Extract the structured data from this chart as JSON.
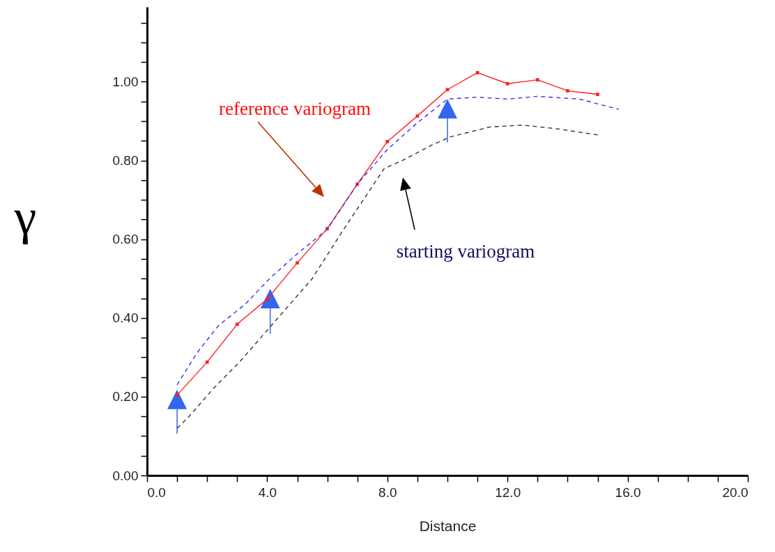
{
  "chart_data": {
    "type": "line",
    "xlabel": "Distance",
    "ylabel": "γ",
    "xlim": [
      0,
      20
    ],
    "ylim": [
      0,
      1.19
    ],
    "xticks": [
      {
        "value": 0,
        "label": "0.0"
      },
      {
        "value": 1,
        "label": null
      },
      {
        "value": 2,
        "label": null
      },
      {
        "value": 3,
        "label": null
      },
      {
        "value": 4,
        "label": "4.0"
      },
      {
        "value": 5,
        "label": null
      },
      {
        "value": 6,
        "label": null
      },
      {
        "value": 7,
        "label": null
      },
      {
        "value": 8,
        "label": "8.0"
      },
      {
        "value": 9,
        "label": null
      },
      {
        "value": 10,
        "label": null
      },
      {
        "value": 11,
        "label": null
      },
      {
        "value": 12,
        "label": "12.0"
      },
      {
        "value": 13,
        "label": null
      },
      {
        "value": 14,
        "label": null
      },
      {
        "value": 15,
        "label": null
      },
      {
        "value": 16,
        "label": "16.0"
      },
      {
        "value": 17,
        "label": null
      },
      {
        "value": 18,
        "label": null
      },
      {
        "value": 19,
        "label": null
      },
      {
        "value": 20,
        "label": "20.0"
      }
    ],
    "yticks": [
      {
        "value": 0,
        "label": "0.00"
      },
      {
        "value": 0.05,
        "label": null
      },
      {
        "value": 0.1,
        "label": null
      },
      {
        "value": 0.15,
        "label": null
      },
      {
        "value": 0.2,
        "label": "0.20"
      },
      {
        "value": 0.25,
        "label": null
      },
      {
        "value": 0.3,
        "label": null
      },
      {
        "value": 0.35,
        "label": null
      },
      {
        "value": 0.4,
        "label": "0.40"
      },
      {
        "value": 0.45,
        "label": null
      },
      {
        "value": 0.5,
        "label": null
      },
      {
        "value": 0.55,
        "label": null
      },
      {
        "value": 0.6,
        "label": "0.60"
      },
      {
        "value": 0.65,
        "label": null
      },
      {
        "value": 0.7,
        "label": null
      },
      {
        "value": 0.75,
        "label": null
      },
      {
        "value": 0.8,
        "label": "0.80"
      },
      {
        "value": 0.85,
        "label": null
      },
      {
        "value": 0.9,
        "label": null
      },
      {
        "value": 0.95,
        "label": null
      },
      {
        "value": 1.0,
        "label": "1.00"
      },
      {
        "value": 1.05,
        "label": null
      },
      {
        "value": 1.1,
        "label": null
      },
      {
        "value": 1.15,
        "label": null
      }
    ],
    "grid": false,
    "series": [
      {
        "color": "#ff2020",
        "marker": "square",
        "line_style": "solid",
        "x": [
          1,
          2,
          3,
          4,
          5,
          6,
          7,
          8,
          9,
          10,
          11,
          12,
          13,
          14,
          15
        ],
        "values": [
          0.204,
          0.288,
          0.384,
          0.448,
          0.54,
          0.627,
          0.74,
          0.848,
          0.913,
          0.98,
          1.023,
          0.995,
          1.005,
          0.977,
          0.968
        ]
      },
      {
        "color": "#3333ee",
        "line_style": "dashed",
        "x": [
          1,
          1.65,
          2.37,
          3.27,
          4.08,
          5,
          6,
          7,
          8,
          9,
          10,
          11,
          12,
          13,
          14.4,
          15.7
        ],
        "values": [
          0.23,
          0.31,
          0.38,
          0.435,
          0.5,
          0.563,
          0.625,
          0.74,
          0.828,
          0.896,
          0.956,
          0.961,
          0.956,
          0.963,
          0.956,
          0.93
        ]
      },
      {
        "color": "#333333",
        "line_style": "dashed",
        "x": [
          1,
          1.4,
          2.2,
          3.1,
          3.9,
          4.7,
          5.5,
          6.5,
          7.9,
          8.5,
          9.5,
          10.1,
          11.4,
          12.5,
          13.7,
          15
        ],
        "values": [
          0.12,
          0.15,
          0.22,
          0.29,
          0.36,
          0.43,
          0.5,
          0.62,
          0.78,
          0.8,
          0.84,
          0.86,
          0.885,
          0.89,
          0.88,
          0.865
        ]
      }
    ],
    "annotations": [
      "reference variogram",
      "starting variogram"
    ]
  }
}
